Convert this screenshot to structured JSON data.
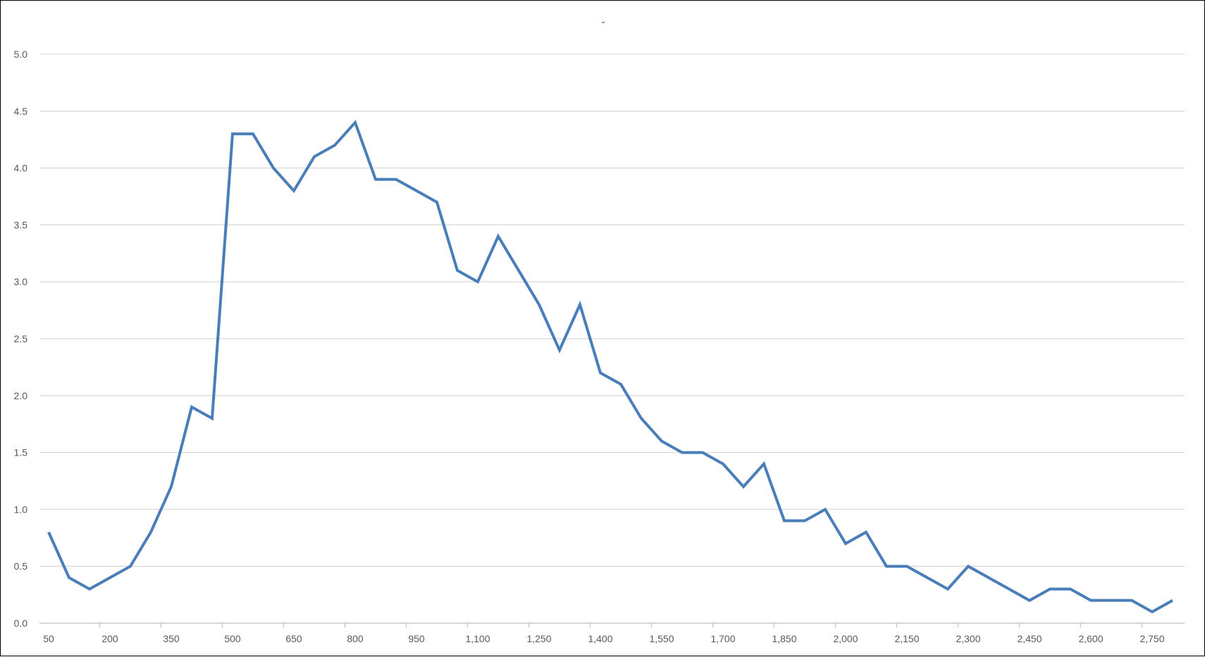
{
  "chart_data": {
    "type": "line",
    "title": "-",
    "xlabel": "",
    "ylabel": "",
    "ylim": [
      0,
      5
    ],
    "yticks": [
      "0.0",
      "0.5",
      "1.0",
      "1.5",
      "2.0",
      "2.5",
      "3.0",
      "3.5",
      "4.0",
      "4.5",
      "5.0"
    ],
    "xticks": [
      "50",
      "200",
      "350",
      "500",
      "650",
      "800",
      "950",
      "1,100",
      "1,250",
      "1,400",
      "1,550",
      "1,700",
      "1,850",
      "2,000",
      "2,150",
      "2,300",
      "2,450",
      "2,600",
      "2,750"
    ],
    "x_step": 50,
    "x": [
      50,
      100,
      150,
      200,
      250,
      300,
      350,
      400,
      450,
      500,
      550,
      600,
      650,
      700,
      750,
      800,
      850,
      900,
      950,
      1000,
      1050,
      1100,
      1150,
      1200,
      1250,
      1300,
      1350,
      1400,
      1450,
      1500,
      1550,
      1600,
      1650,
      1700,
      1750,
      1800,
      1850,
      1900,
      1950,
      2000,
      2050,
      2100,
      2150,
      2200,
      2250,
      2300,
      2350,
      2400,
      2450,
      2500,
      2550,
      2600,
      2650,
      2700,
      2750,
      2800
    ],
    "series": [
      {
        "values": [
          0.8,
          0.4,
          0.3,
          0.4,
          0.5,
          0.8,
          1.2,
          1.9,
          1.8,
          4.3,
          4.3,
          4.0,
          3.8,
          4.1,
          4.2,
          4.4,
          3.9,
          3.9,
          3.8,
          3.7,
          3.1,
          3.0,
          3.4,
          3.1,
          2.8,
          2.4,
          2.8,
          2.2,
          2.1,
          1.8,
          1.6,
          1.5,
          1.5,
          1.4,
          1.2,
          1.4,
          0.9,
          0.9,
          1.0,
          0.7,
          0.8,
          0.5,
          0.5,
          0.4,
          0.3,
          0.5,
          0.4,
          0.3,
          0.2,
          0.3,
          0.3,
          0.2,
          0.2,
          0.2,
          0.1,
          0.2
        ]
      }
    ],
    "grid": true,
    "legend": "none",
    "colors": {
      "line": "#4a7ebb",
      "grid": "#d9d9d9",
      "axis": "#bfbfbf",
      "text": "#595959"
    }
  }
}
